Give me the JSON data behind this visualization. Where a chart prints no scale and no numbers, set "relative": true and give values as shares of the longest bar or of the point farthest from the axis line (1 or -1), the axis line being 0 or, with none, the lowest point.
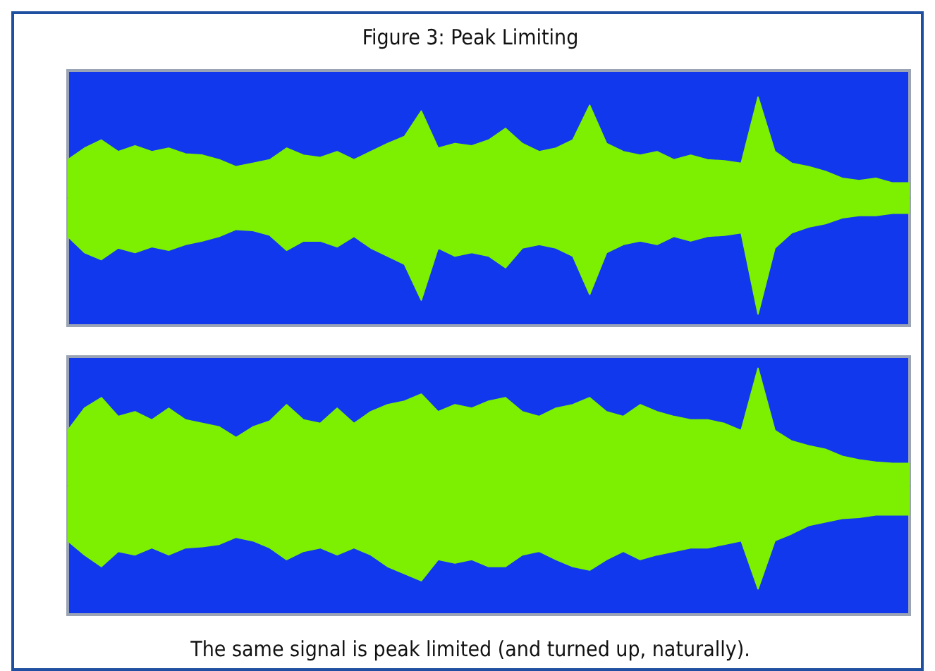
{
  "chart_data": [
    {
      "type": "area",
      "title": "Figure 3: Peak Limiting",
      "relative": true,
      "grid": false,
      "categories": [
        null,
        null,
        null,
        null,
        null,
        null,
        null,
        null,
        null,
        null,
        null,
        null,
        null,
        null,
        null,
        null,
        null,
        null,
        null,
        null,
        null,
        null,
        null,
        null,
        null,
        null,
        null,
        null,
        null,
        null,
        null,
        null,
        null,
        null,
        null,
        null,
        null,
        null,
        null,
        null,
        null,
        null,
        null,
        null,
        null,
        null,
        null,
        null,
        null,
        null,
        null
      ],
      "series": [
        {
          "color": "#7cf000",
          "values": [
            0.33,
            0.43,
            0.5,
            0.4,
            0.45,
            0.4,
            0.43,
            0.38,
            0.37,
            0.33,
            0.27,
            0.3,
            0.33,
            0.43,
            0.37,
            0.35,
            0.4,
            0.33,
            0.4,
            0.47,
            0.53,
            0.75,
            0.43,
            0.47,
            0.45,
            0.5,
            0.6,
            0.47,
            0.4,
            0.43,
            0.5,
            0.8,
            0.47,
            0.4,
            0.37,
            0.4,
            0.33,
            0.37,
            0.33,
            0.32,
            0.3,
            0.87,
            0.4,
            0.3,
            0.27,
            0.23,
            0.17,
            0.15,
            0.17,
            0.13,
            0.13
          ]
        },
        {
          "color": "#7cf000",
          "values": [
            -0.33,
            -0.47,
            -0.53,
            -0.43,
            -0.47,
            -0.42,
            -0.45,
            -0.4,
            -0.37,
            -0.33,
            -0.27,
            -0.28,
            -0.32,
            -0.45,
            -0.37,
            -0.37,
            -0.42,
            -0.33,
            -0.43,
            -0.5,
            -0.57,
            -0.88,
            -0.43,
            -0.5,
            -0.47,
            -0.5,
            -0.6,
            -0.43,
            -0.4,
            -0.43,
            -0.5,
            -0.83,
            -0.47,
            -0.4,
            -0.37,
            -0.4,
            -0.33,
            -0.37,
            -0.33,
            -0.32,
            -0.3,
            -1,
            -0.43,
            -0.3,
            -0.25,
            -0.22,
            -0.17,
            -0.15,
            -0.15,
            -0.13,
            -0.13
          ]
        }
      ]
    },
    {
      "type": "area",
      "relative": true,
      "grid": false,
      "annotations": [
        "The same signal is peak limited (and turned up, naturally)."
      ],
      "categories": [
        null,
        null,
        null,
        null,
        null,
        null,
        null,
        null,
        null,
        null,
        null,
        null,
        null,
        null,
        null,
        null,
        null,
        null,
        null,
        null,
        null,
        null,
        null,
        null,
        null,
        null,
        null,
        null,
        null,
        null,
        null,
        null,
        null,
        null,
        null,
        null,
        null,
        null,
        null,
        null,
        null,
        null,
        null,
        null,
        null,
        null,
        null,
        null,
        null,
        null,
        null
      ],
      "series": [
        {
          "color": "#7cf000",
          "values": [
            0.47,
            0.66,
            0.75,
            0.59,
            0.63,
            0.56,
            0.66,
            0.56,
            0.53,
            0.5,
            0.41,
            0.5,
            0.55,
            0.69,
            0.56,
            0.53,
            0.66,
            0.53,
            0.63,
            0.69,
            0.72,
            0.78,
            0.63,
            0.69,
            0.66,
            0.72,
            0.75,
            0.63,
            0.59,
            0.66,
            0.69,
            0.75,
            0.63,
            0.59,
            0.69,
            0.63,
            0.59,
            0.56,
            0.56,
            0.53,
            0.47,
            1,
            0.47,
            0.38,
            0.34,
            0.31,
            0.25,
            0.22,
            0.2,
            0.19,
            0.19
          ]
        },
        {
          "color": "#7cf000",
          "values": [
            -0.47,
            -0.59,
            -0.69,
            -0.56,
            -0.59,
            -0.53,
            -0.59,
            -0.53,
            -0.52,
            -0.5,
            -0.44,
            -0.47,
            -0.53,
            -0.63,
            -0.56,
            -0.53,
            -0.59,
            -0.53,
            -0.59,
            -0.69,
            -0.75,
            -0.81,
            -0.63,
            -0.66,
            -0.63,
            -0.69,
            -0.69,
            -0.59,
            -0.56,
            -0.63,
            -0.69,
            -0.72,
            -0.63,
            -0.56,
            -0.63,
            -0.59,
            -0.56,
            -0.53,
            -0.53,
            -0.5,
            -0.47,
            -0.88,
            -0.47,
            -0.41,
            -0.34,
            -0.31,
            -0.28,
            -0.27,
            -0.25,
            -0.25,
            -0.25
          ]
        }
      ]
    }
  ]
}
